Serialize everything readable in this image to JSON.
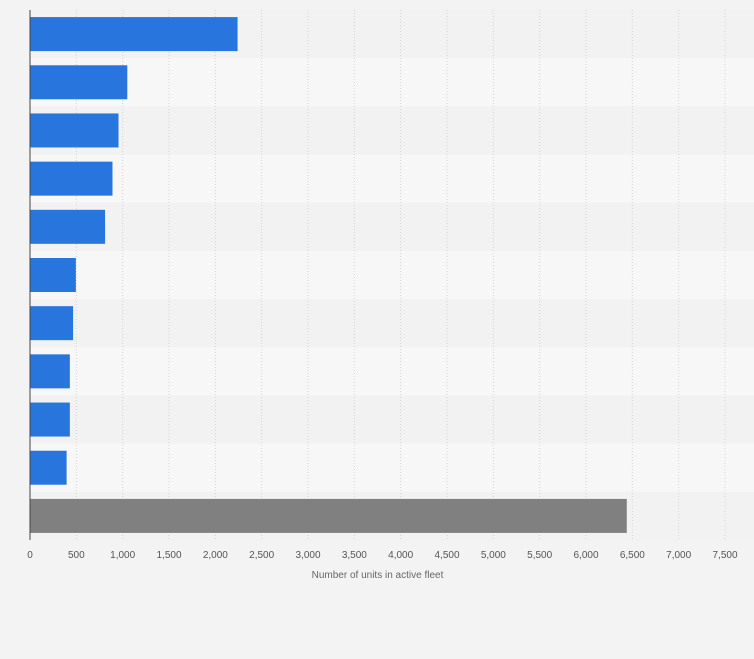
{
  "chart_data": {
    "type": "bar",
    "orientation": "horizontal",
    "categories": [
      "",
      "",
      "",
      "",
      "",
      "",
      "",
      "",
      "",
      "",
      ""
    ],
    "values": [
      2240,
      1050,
      955,
      890,
      810,
      495,
      465,
      430,
      430,
      395,
      6440
    ],
    "bar_colors": [
      "#2876dd",
      "#2876dd",
      "#2876dd",
      "#2876dd",
      "#2876dd",
      "#2876dd",
      "#2876dd",
      "#2876dd",
      "#2876dd",
      "#2876dd",
      "#808080"
    ],
    "title": "",
    "xlabel": "Number of units in active fleet",
    "ylabel": "",
    "xlim": [
      0,
      7500
    ],
    "xticks": [
      0,
      500,
      1000,
      1500,
      2000,
      2500,
      3000,
      3500,
      4000,
      4500,
      5000,
      5500,
      6000,
      6500,
      7000,
      7500
    ],
    "xtick_labels": [
      "0",
      "500",
      "1,000",
      "1,500",
      "2,000",
      "2,500",
      "3,000",
      "3,500",
      "4,000",
      "4,500",
      "5,000",
      "5,500",
      "6,000",
      "6,500",
      "7,000",
      "7,500"
    ],
    "grid": true,
    "legend": "none"
  }
}
